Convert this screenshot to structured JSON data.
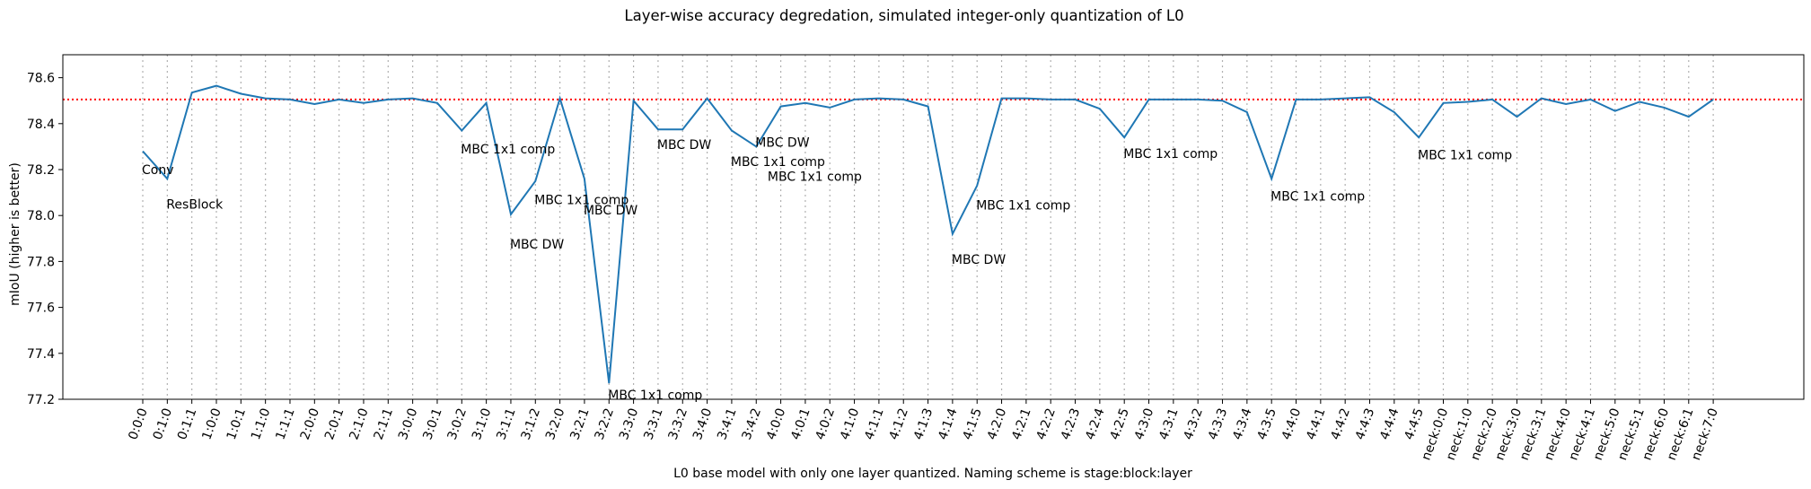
{
  "chart_data": {
    "type": "line",
    "title": "Layer-wise accuracy degredation, simulated integer-only quantization of L0",
    "xlabel": "L0 base model with only one layer quantized. Naming scheme is stage:block:layer",
    "ylabel": "mIoU (higher is better)",
    "ylim": [
      77.2,
      78.7
    ],
    "yticks": [
      77.2,
      77.4,
      77.6,
      77.8,
      78.0,
      78.2,
      78.4,
      78.6
    ],
    "baseline": 78.505,
    "grid_x": true,
    "line_color": "#1f77b4",
    "baseline_color": "#ff0000",
    "categories": [
      "0:0:0",
      "0:1:0",
      "0:1:1",
      "1:0:0",
      "1:0:1",
      "1:1:0",
      "1:1:1",
      "2:0:0",
      "2:0:1",
      "2:1:0",
      "2:1:1",
      "3:0:0",
      "3:0:1",
      "3:0:2",
      "3:1:0",
      "3:1:1",
      "3:1:2",
      "3:2:0",
      "3:2:1",
      "3:2:2",
      "3:3:0",
      "3:3:1",
      "3:3:2",
      "3:4:0",
      "3:4:1",
      "3:4:2",
      "4:0:0",
      "4:0:1",
      "4:0:2",
      "4:1:0",
      "4:1:1",
      "4:1:2",
      "4:1:3",
      "4:1:4",
      "4:1:5",
      "4:2:0",
      "4:2:1",
      "4:2:2",
      "4:2:3",
      "4:2:4",
      "4:2:5",
      "4:3:0",
      "4:3:1",
      "4:3:2",
      "4:3:3",
      "4:3:4",
      "4:3:5",
      "4:4:0",
      "4:4:1",
      "4:4:2",
      "4:4:3",
      "4:4:4",
      "4:4:5",
      "neck:0:0",
      "neck:1:0",
      "neck:2:0",
      "neck:3:0",
      "neck:3:1",
      "neck:4:0",
      "neck:4:1",
      "neck:5:0",
      "neck:5:1",
      "neck:6:0",
      "neck:6:1",
      "neck:7:0"
    ],
    "values": [
      78.28,
      78.16,
      78.535,
      78.565,
      78.53,
      78.51,
      78.505,
      78.485,
      78.505,
      78.49,
      78.505,
      78.51,
      78.49,
      78.37,
      78.49,
      78.005,
      78.15,
      78.51,
      78.16,
      77.27,
      78.5,
      78.375,
      78.375,
      78.51,
      78.37,
      78.3,
      78.475,
      78.49,
      78.47,
      78.505,
      78.51,
      78.505,
      78.475,
      77.92,
      78.13,
      78.51,
      78.51,
      78.505,
      78.505,
      78.465,
      78.34,
      78.505,
      78.505,
      78.505,
      78.5,
      78.45,
      78.16,
      78.505,
      78.505,
      78.51,
      78.515,
      78.45,
      78.34,
      78.49,
      78.495,
      78.505,
      78.43,
      78.51,
      78.485,
      78.505,
      78.455,
      78.495,
      78.47,
      78.43,
      78.505
    ],
    "annotations": [
      {
        "index": 0,
        "text": "Conv",
        "value": 78.2
      },
      {
        "index": 1,
        "text": "ResBlock",
        "value": 78.05
      },
      {
        "index": 13,
        "text": "MBC 1x1 comp",
        "value": 78.29
      },
      {
        "index": 15,
        "text": "MBC DW",
        "value": 77.875
      },
      {
        "index": 16,
        "text": "MBC 1x1 comp",
        "value": 78.07
      },
      {
        "index": 18,
        "text": "MBC DW",
        "value": 78.025
      },
      {
        "index": 19,
        "text": "MBC 1x1 comp",
        "value": 77.22
      },
      {
        "index": 21,
        "text": "MBC DW",
        "value": 78.31
      },
      {
        "index": 24,
        "text": "MBC 1x1 comp",
        "value": 78.235
      },
      {
        "index": 25,
        "text": "MBC DW",
        "value": 78.32
      },
      {
        "index": 25.5,
        "text": "MBC 1x1 comp",
        "value": 78.17
      },
      {
        "index": 33,
        "text": "MBC DW",
        "value": 77.81
      },
      {
        "index": 34,
        "text": "MBC 1x1 comp",
        "value": 78.045
      },
      {
        "index": 40,
        "text": "MBC 1x1 comp",
        "value": 78.27
      },
      {
        "index": 46,
        "text": "MBC 1x1 comp",
        "value": 78.085
      },
      {
        "index": 52,
        "text": "MBC 1x1 comp",
        "value": 78.265
      }
    ]
  }
}
